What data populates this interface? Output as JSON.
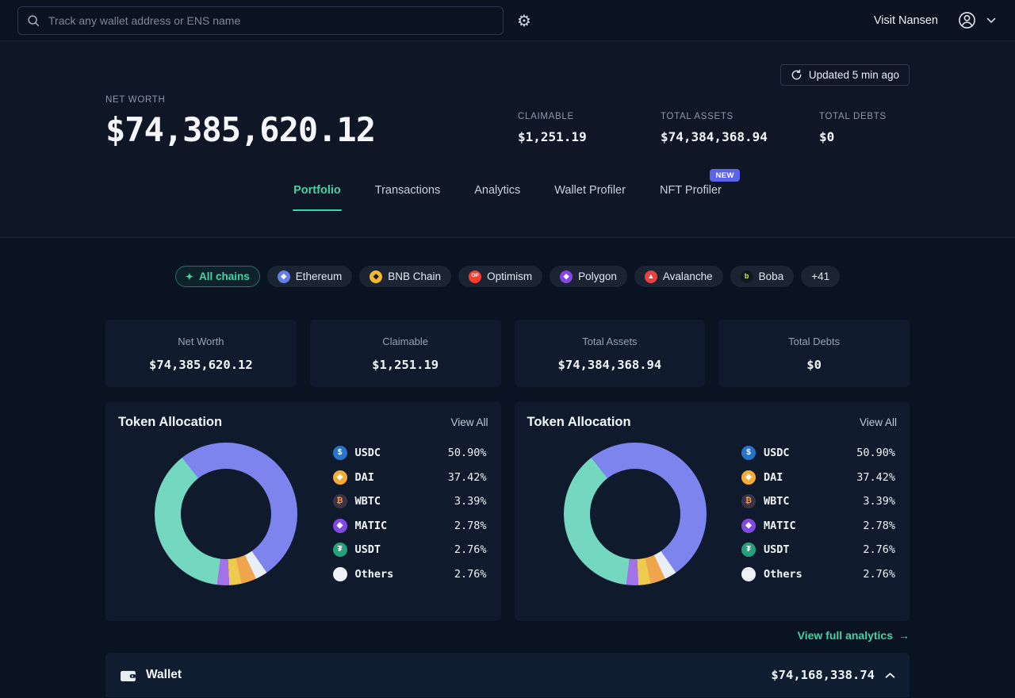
{
  "colors": {
    "accent": "#46d3a4",
    "new_badge": "#5b64e8"
  },
  "topbar": {
    "search_placeholder": "Track any wallet address or ENS name",
    "visit_label": "Visit Nansen"
  },
  "hero": {
    "updated_label": "Updated 5 min ago",
    "net_worth": {
      "label": "NET WORTH",
      "value": "$74,385,620.12"
    },
    "stats": [
      {
        "label": "CLAIMABLE",
        "value": "$1,251.19"
      },
      {
        "label": "TOTAL ASSETS",
        "value": "$74,384,368.94"
      },
      {
        "label": "TOTAL DEBTS",
        "value": "$0"
      }
    ],
    "tabs": [
      {
        "label": "Portfolio",
        "active": true
      },
      {
        "label": "Transactions",
        "active": false
      },
      {
        "label": "Analytics",
        "active": false
      },
      {
        "label": "Wallet Profiler",
        "active": false
      },
      {
        "label": "NFT Profiler",
        "active": false,
        "badge": "NEW"
      }
    ]
  },
  "chains": [
    {
      "label": "All chains",
      "active": true,
      "icon": {
        "glyph": "✦",
        "fg": "#46d3a4",
        "bare": true
      }
    },
    {
      "label": "Ethereum",
      "icon": {
        "glyph": "◆",
        "bg": "#627eea",
        "fg": "#ffffff"
      }
    },
    {
      "label": "BNB Chain",
      "icon": {
        "glyph": "◆",
        "bg": "#f3ba2f",
        "fg": "#14202e"
      }
    },
    {
      "label": "Optimism",
      "icon": {
        "glyph": "OP",
        "bg": "#ff3b30",
        "fg": "#ffffff"
      }
    },
    {
      "label": "Polygon",
      "icon": {
        "glyph": "◆",
        "bg": "#8247e5",
        "fg": "#ffffff"
      }
    },
    {
      "label": "Avalanche",
      "icon": {
        "glyph": "▲",
        "bg": "#e84142",
        "fg": "#ffffff"
      }
    },
    {
      "label": "Boba",
      "icon": {
        "glyph": "b",
        "bg": "#121820",
        "fg": "#cdf55a"
      }
    },
    {
      "label": "+41"
    }
  ],
  "summary_cards": [
    {
      "label": "Net Worth",
      "value": "$74,385,620.12"
    },
    {
      "label": "Claimable",
      "value": "$1,251.19"
    },
    {
      "label": "Total Assets",
      "value": "$74,384,368.94"
    },
    {
      "label": "Total Debts",
      "value": "$0"
    }
  ],
  "allocation": {
    "view_all_label": "View All"
  },
  "chart_data": [
    {
      "type": "pie",
      "donut": true,
      "title": "Token Allocation",
      "legend_position": "right",
      "start_angle_deg": 322,
      "slices": [
        {
          "label": "USDC",
          "value": 50.9,
          "color": "#7e84ee"
        },
        {
          "label": "Others",
          "value": 2.76,
          "color": "#e9edf4"
        },
        {
          "label": "WBTC",
          "value": 3.39,
          "color": "#efa44e"
        },
        {
          "label": "USDT",
          "value": 2.76,
          "color": "#edcb4f"
        },
        {
          "label": "MATIC",
          "value": 2.78,
          "color": "#a273e8"
        },
        {
          "label": "DAI",
          "value": 37.42,
          "color": "#74d7bf"
        }
      ],
      "legend": [
        {
          "symbol": "USDC",
          "pct": "50.90%",
          "icon_bg": "#2775ca",
          "icon_fg": "#ffffff",
          "icon_glyph": "$"
        },
        {
          "symbol": "DAI",
          "pct": "37.42%",
          "icon_bg": "#f5ac37",
          "icon_fg": "#ffffff",
          "icon_glyph": "◈"
        },
        {
          "symbol": "WBTC",
          "pct": "3.39%",
          "icon_bg": "#3a3347",
          "icon_fg": "#f2994a",
          "icon_glyph": "₿"
        },
        {
          "symbol": "MATIC",
          "pct": "2.78%",
          "icon_bg": "#8247e5",
          "icon_fg": "#ffffff",
          "icon_glyph": "◆"
        },
        {
          "symbol": "USDT",
          "pct": "2.76%",
          "icon_bg": "#26a17b",
          "icon_fg": "#ffffff",
          "icon_glyph": "₮"
        },
        {
          "symbol": "Others",
          "pct": "2.76%",
          "icon_bg": "#eef1f6",
          "icon_fg": "#0a1322",
          "icon_glyph": ""
        }
      ]
    },
    {
      "type": "pie",
      "donut": true,
      "title": "Token Allocation",
      "legend_position": "right",
      "start_angle_deg": 322,
      "slices": [
        {
          "label": "USDC",
          "value": 50.9,
          "color": "#7e84ee"
        },
        {
          "label": "Others",
          "value": 2.76,
          "color": "#e9edf4"
        },
        {
          "label": "WBTC",
          "value": 3.39,
          "color": "#efa44e"
        },
        {
          "label": "USDT",
          "value": 2.76,
          "color": "#edcb4f"
        },
        {
          "label": "MATIC",
          "value": 2.78,
          "color": "#a273e8"
        },
        {
          "label": "DAI",
          "value": 37.42,
          "color": "#74d7bf"
        }
      ],
      "legend": [
        {
          "symbol": "USDC",
          "pct": "50.90%",
          "icon_bg": "#2775ca",
          "icon_fg": "#ffffff",
          "icon_glyph": "$"
        },
        {
          "symbol": "DAI",
          "pct": "37.42%",
          "icon_bg": "#f5ac37",
          "icon_fg": "#ffffff",
          "icon_glyph": "◈"
        },
        {
          "symbol": "WBTC",
          "pct": "3.39%",
          "icon_bg": "#3a3347",
          "icon_fg": "#f2994a",
          "icon_glyph": "₿"
        },
        {
          "symbol": "MATIC",
          "pct": "2.78%",
          "icon_bg": "#8247e5",
          "icon_fg": "#ffffff",
          "icon_glyph": "◆"
        },
        {
          "symbol": "USDT",
          "pct": "2.76%",
          "icon_bg": "#26a17b",
          "icon_fg": "#ffffff",
          "icon_glyph": "₮"
        },
        {
          "symbol": "Others",
          "pct": "2.76%",
          "icon_bg": "#eef1f6",
          "icon_fg": "#0a1322",
          "icon_glyph": ""
        }
      ]
    }
  ],
  "footer": {
    "analytics_link": "View full analytics",
    "arrow_glyph": "→"
  },
  "wallet_section": {
    "label": "Wallet",
    "value": "$74,168,338.74"
  }
}
